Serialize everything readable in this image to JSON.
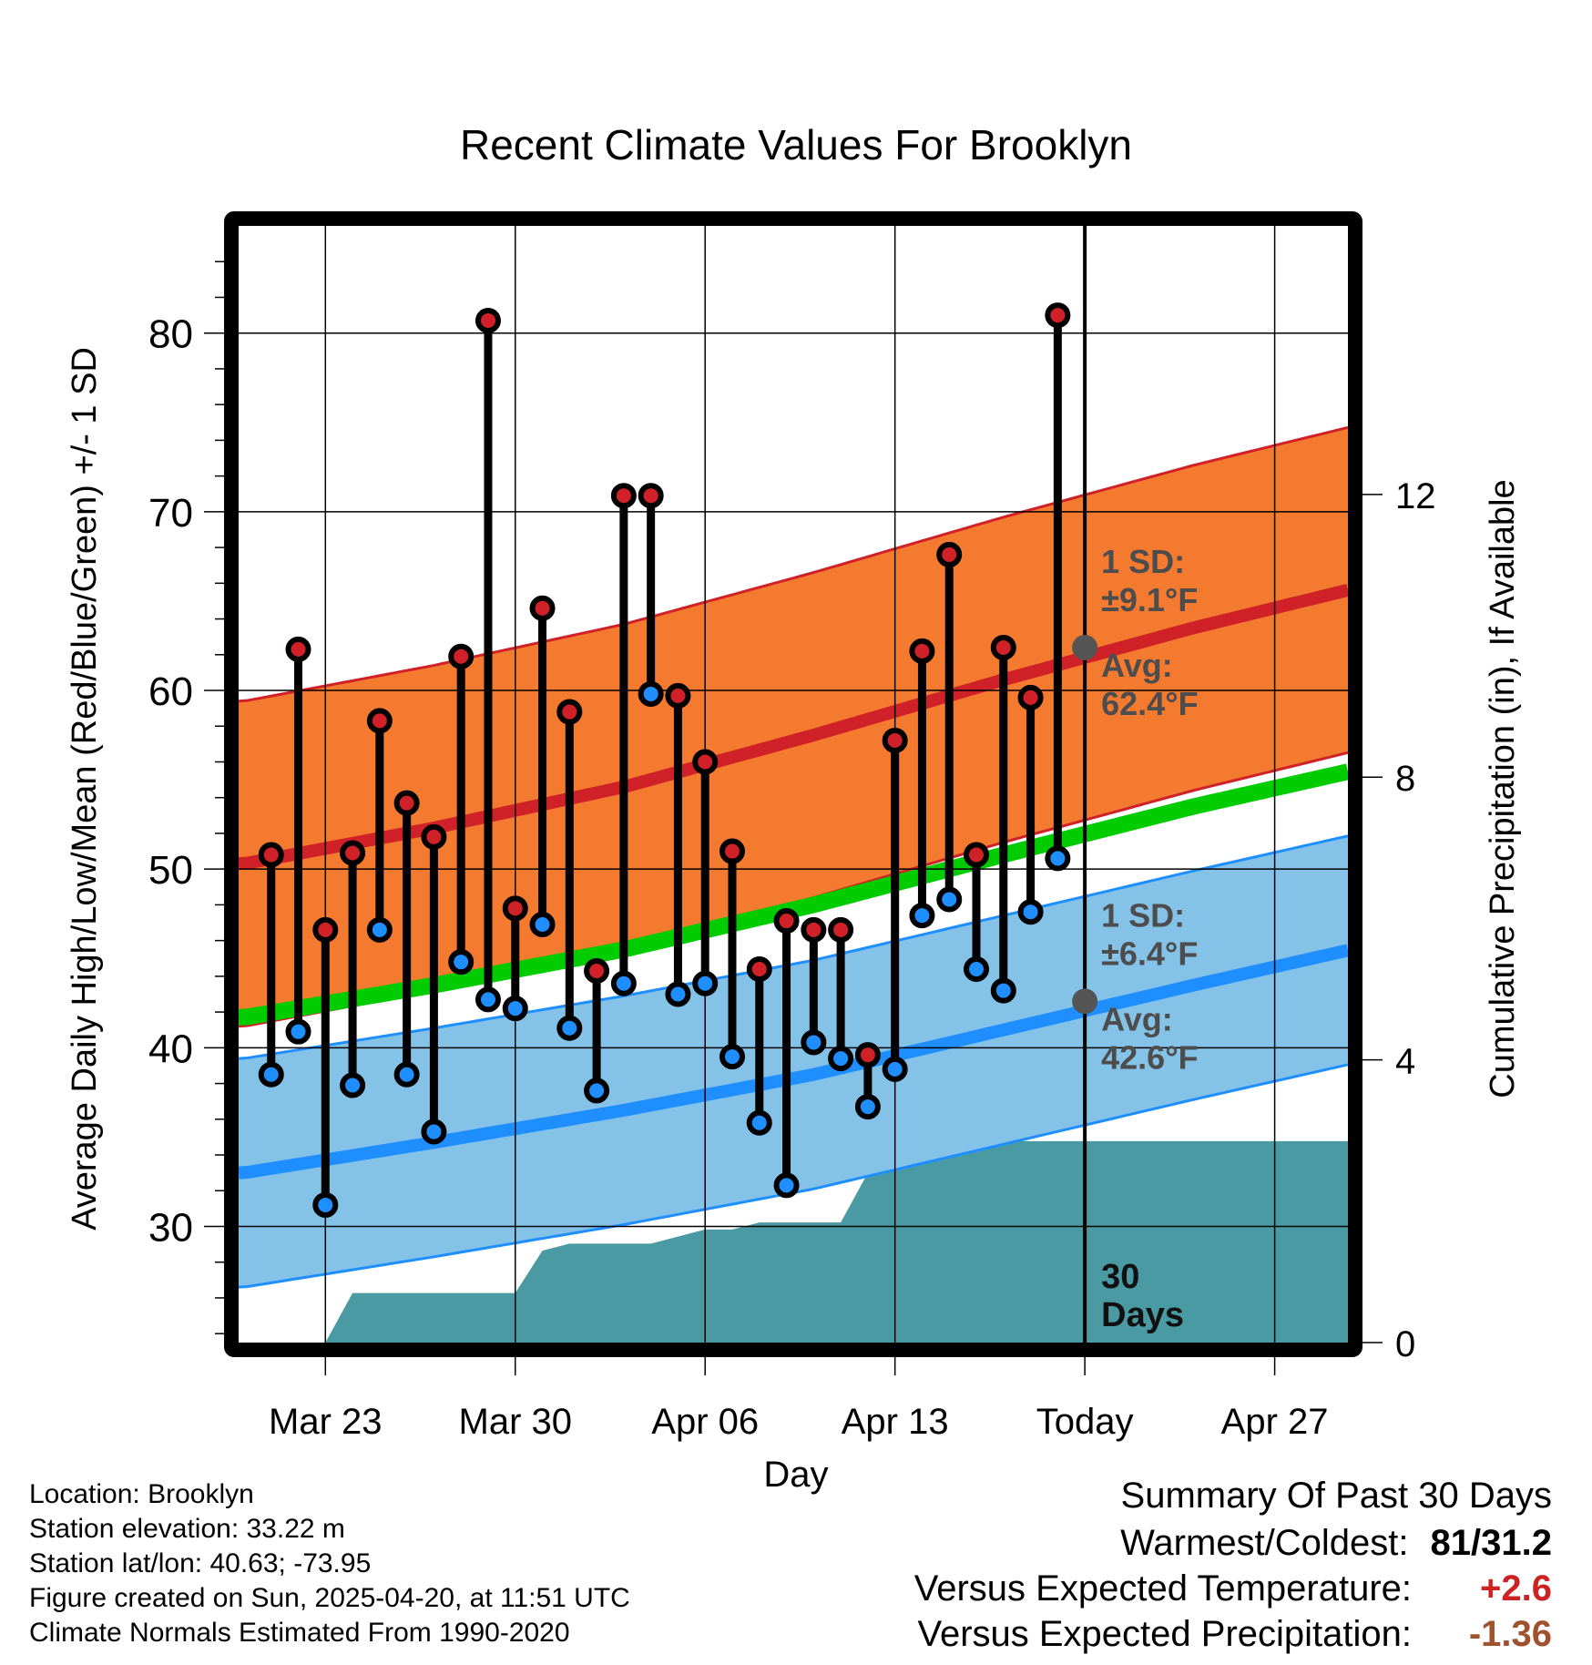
{
  "chart_data": {
    "type": "line",
    "title": "Recent Climate Values For Brooklyn",
    "xlabel": "Day",
    "ylabel": "Average Daily High/Low/Mean (Red/Blue/Green) +/- 1 SD",
    "y2label": "Cumulative Precipitation (in), If Available",
    "x_ticks": [
      "Mar 23",
      "Mar 30",
      "Apr 06",
      "Apr 13",
      "Today",
      "Apr 27"
    ],
    "x_tick_days": [
      2,
      9,
      16,
      23,
      30,
      37
    ],
    "x_range_days": [
      -1.2,
      39.7
    ],
    "ylim": [
      23.5,
      86
    ],
    "y_ticks": [
      30,
      40,
      50,
      60,
      70,
      80
    ],
    "y2lim": [
      0,
      15.8
    ],
    "y2_ticks": [
      0,
      4,
      8,
      12
    ],
    "today_day": 30,
    "dates": [
      "Mar 21",
      "Mar 22",
      "Mar 23",
      "Mar 24",
      "Mar 25",
      "Mar 26",
      "Mar 27",
      "Mar 28",
      "Mar 29",
      "Mar 30",
      "Mar 31",
      "Apr 01",
      "Apr 02",
      "Apr 03",
      "Apr 04",
      "Apr 05",
      "Apr 06",
      "Apr 07",
      "Apr 08",
      "Apr 09",
      "Apr 10",
      "Apr 11",
      "Apr 12",
      "Apr 13",
      "Apr 14",
      "Apr 15",
      "Apr 16",
      "Apr 17",
      "Apr 18",
      "Apr 19"
    ],
    "daily_high": [
      50.8,
      62.3,
      46.6,
      50.9,
      58.3,
      53.7,
      51.8,
      61.9,
      80.7,
      47.8,
      64.6,
      58.8,
      44.3,
      70.9,
      70.9,
      59.7,
      56.0,
      51.0,
      44.4,
      47.1,
      46.6,
      46.6,
      39.6,
      57.2,
      62.2,
      67.6,
      50.8,
      62.4,
      59.6,
      81.0
    ],
    "daily_low": [
      38.5,
      40.9,
      31.2,
      37.9,
      46.6,
      38.5,
      35.3,
      44.8,
      42.7,
      42.2,
      46.9,
      41.1,
      37.6,
      43.6,
      59.8,
      43.0,
      43.6,
      39.5,
      35.8,
      32.3,
      40.3,
      39.4,
      36.7,
      38.8,
      47.4,
      48.3,
      44.4,
      43.2,
      47.6,
      50.6
    ],
    "normal_high_curve": {
      "days": [
        -1,
        6,
        13,
        20,
        27,
        34,
        41
      ],
      "values": [
        50.3,
        52.3,
        54.6,
        57.5,
        60.6,
        63.5,
        66.1
      ]
    },
    "normal_low_curve": {
      "days": [
        -1,
        6,
        13,
        20,
        27,
        34,
        41
      ],
      "values": [
        33.0,
        34.7,
        36.5,
        38.5,
        41.0,
        43.5,
        45.9
      ]
    },
    "normal_mean_curve": {
      "days": [
        -1,
        6,
        13,
        20,
        27,
        34,
        41
      ],
      "values": [
        41.7,
        43.5,
        45.5,
        48.0,
        50.8,
        53.5,
        55.9
      ]
    },
    "high_sd": 9.1,
    "low_sd": 6.4,
    "annotations": {
      "high_sd_label": "1 SD:",
      "high_sd_value": "±9.1°F",
      "high_avg_label": "Avg:",
      "high_avg_value": "62.4°F",
      "low_sd_label": "1 SD:",
      "low_sd_value": "±6.4°F",
      "low_avg_label": "Avg:",
      "low_avg_value": "42.6°F",
      "days_number": "30",
      "days_word": "Days"
    },
    "today_high_avg": 62.4,
    "today_low_avg": 42.6,
    "precip_cumulative": {
      "days": [
        -1,
        0.3,
        1,
        2,
        3,
        9,
        10,
        11,
        14,
        15,
        16,
        17,
        18,
        19,
        20,
        21,
        22,
        23,
        24,
        25,
        30,
        39.7
      ],
      "values": [
        0,
        0,
        0,
        0,
        0.7,
        0.7,
        1.3,
        1.4,
        1.4,
        1.5,
        1.6,
        1.6,
        1.7,
        1.7,
        1.7,
        1.7,
        2.4,
        2.8,
        2.8,
        2.85,
        2.85,
        2.85
      ]
    },
    "colors": {
      "high_band": "#f47a30",
      "high_line": "#cf2127",
      "low_band": "#84c2e8",
      "low_line": "#1f8fff",
      "mean_line": "#00cc00",
      "precip": "#4a9aa3",
      "high_dot": "#cf2127",
      "low_dot": "#1f8fff",
      "today_dot": "#555555",
      "warm_text": "#cc2222",
      "precip_text": "#a0522d",
      "annotation_text": "#4d4d4d"
    }
  },
  "info": {
    "location": "Location: Brooklyn",
    "elevation": "Station elevation: 33.22 m",
    "latlon": "Station lat/lon: 40.63; -73.95",
    "created": "Figure created on Sun, 2025-04-20, at 11:51 UTC",
    "normals": "Climate Normals Estimated From 1990-2020"
  },
  "summary": {
    "title": "Summary Of Past 30 Days",
    "warmest_label": "Warmest/Coldest:",
    "warmest_value": "81/31.2",
    "temp_label": "Versus Expected Temperature:",
    "temp_value": "+2.6",
    "precip_label": "Versus Expected Precipitation:",
    "precip_value": "-1.36"
  }
}
